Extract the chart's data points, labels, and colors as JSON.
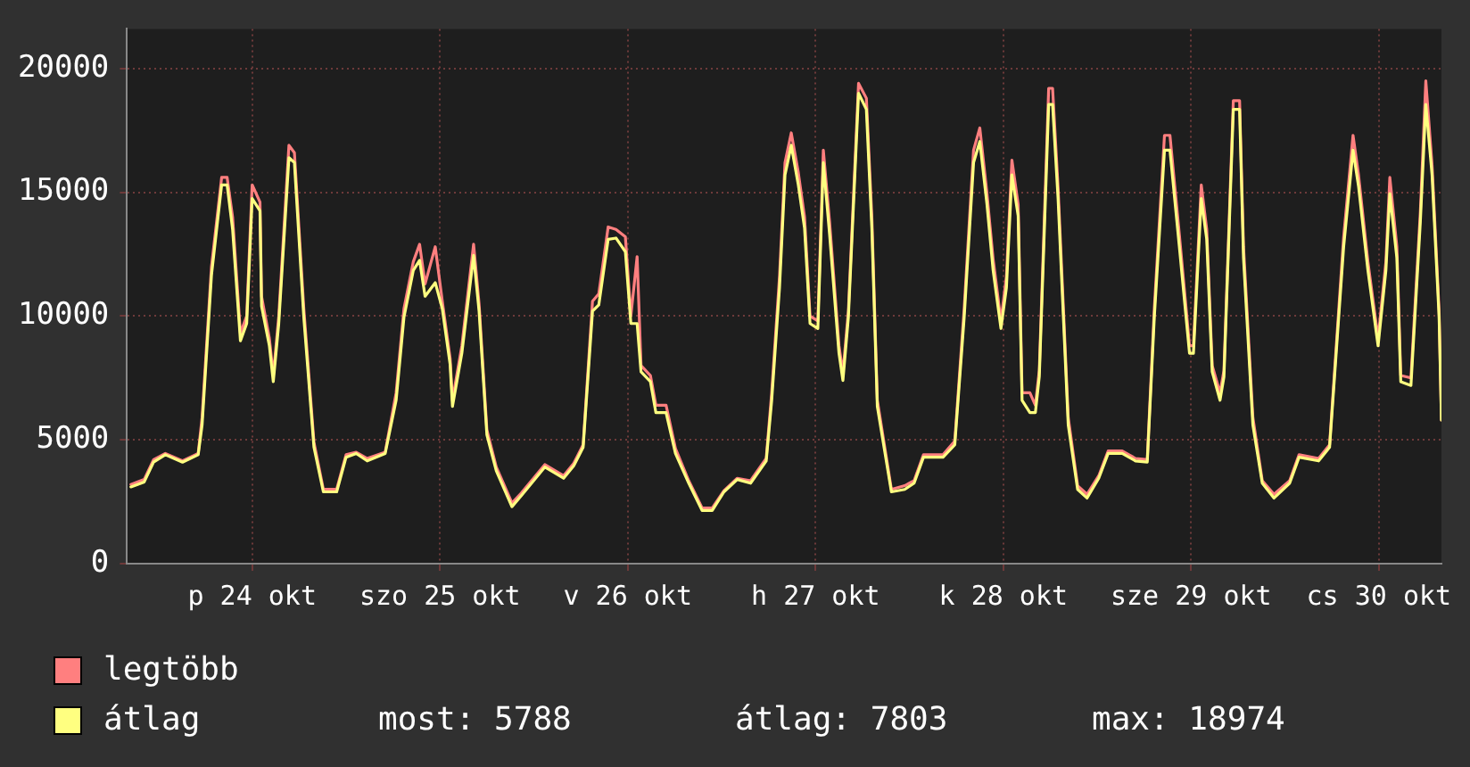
{
  "chart_data": {
    "type": "line",
    "x": [
      "--10-23T20:30",
      "--10-23T22:12",
      "--10-23T23:24",
      "--10-24T00:54",
      "--10-24T03:06",
      "--10-24T05:06",
      "--10-24T05:36",
      "--10-24T06:48",
      "--10-24T08:06",
      "--10-24T08:48",
      "--10-24T09:30",
      "--10-24T10:30",
      "--10-24T11:18",
      "--10-24T12:00",
      "--10-24T13:00",
      "--10-24T13:12",
      "--10-24T14:12",
      "--10-24T14:42",
      "--10-24T15:24",
      "--10-24T16:42",
      "--10-24T17:24",
      "--10-24T18:36",
      "--10-24T19:54",
      "--10-24T21:06",
      "--10-24T22:48",
      "--10-25T00:00",
      "--10-25T01:18",
      "--10-25T02:42",
      "--10-25T05:00",
      "--10-25T06:24",
      "--10-25T07:24",
      "--10-25T08:36",
      "--10-25T09:24",
      "--10-25T10:06",
      "--10-25T11:24",
      "--10-25T12:18",
      "--10-25T13:18",
      "--10-25T13:36",
      "--10-25T14:48",
      "--10-25T16:18",
      "--10-25T17:00",
      "--10-25T18:00",
      "--10-25T19:12",
      "--10-25T21:12",
      "--10-25T22:24",
      "--10-26T01:24",
      "--10-26T03:48",
      "--10-26T05:06",
      "--10-26T06:18",
      "--10-26T07:30",
      "--10-26T08:18",
      "--10-26T09:30",
      "--10-26T10:30",
      "--10-26T11:42",
      "--10-26T12:24",
      "--10-26T13:12",
      "--10-26T13:42",
      "--10-26T14:54",
      "--10-26T15:36",
      "--10-26T16:54",
      "--10-26T18:06",
      "--10-26T19:48",
      "--10-26T21:30",
      "--10-26T22:48",
      "--10-27T00:18",
      "--10-27T02:00",
      "--10-27T03:42",
      "--10-27T05:42",
      "--10-27T06:24",
      "--10-27T07:24",
      "--10-27T08:06",
      "--10-27T08:54",
      "--10-27T09:48",
      "--10-27T10:36",
      "--10-27T11:18",
      "--10-27T12:18",
      "--10-27T13:00",
      "--10-27T13:48",
      "--10-27T15:00",
      "--10-27T15:30",
      "--10-27T16:12",
      "--10-27T17:30",
      "--10-27T18:30",
      "--10-27T19:12",
      "--10-27T19:54",
      "--10-27T21:42",
      "--10-27T23:24",
      "--10-28T00:36",
      "--10-28T01:48",
      "--10-28T04:18",
      "--10-28T05:48",
      "--10-28T07:00",
      "--10-28T08:12",
      "--10-28T09:00",
      "--10-28T09:54",
      "--10-28T10:42",
      "--10-28T11:42",
      "--10-28T12:24",
      "--10-28T13:06",
      "--10-28T13:54",
      "--10-28T14:24",
      "--10-28T15:24",
      "--10-28T16:06",
      "--10-28T16:36",
      "--10-28T17:48",
      "--10-28T18:18",
      "--10-28T19:00",
      "--10-28T20:18",
      "--10-28T21:30",
      "--10-28T22:42",
      "--10-29T00:12",
      "--10-29T01:24",
      "--10-29T03:12",
      "--10-29T04:54",
      "--10-29T06:24",
      "--10-29T07:18",
      "--10-29T08:36",
      "--10-29T09:18",
      "--10-29T10:30",
      "--10-29T11:48",
      "--10-29T12:18",
      "--10-29T13:18",
      "--10-29T14:00",
      "--10-29T14:42",
      "--10-29T15:42",
      "--10-29T16:12",
      "--10-29T17:24",
      "--10-29T18:12",
      "--10-29T18:42",
      "--10-29T19:54",
      "--10-29T21:06",
      "--10-29T22:36",
      "--10-30T00:36",
      "--10-30T01:48",
      "--10-30T04:18",
      "--10-30T05:42",
      "--10-30T07:30",
      "--10-30T08:42",
      "--10-30T09:24",
      "--10-30T10:36",
      "--10-30T11:54",
      "--10-30T12:54",
      "--10-30T13:24",
      "--10-30T14:18",
      "--10-30T14:48",
      "--10-30T16:06",
      "--10-30T17:18",
      "--10-30T18:00",
      "--10-30T18:48",
      "--10-30T19:42",
      "--10-30T20:00"
    ],
    "series": [
      {
        "name": "legtöbb",
        "color": "#ff7f7f",
        "values": [
          3200,
          3400,
          4200,
          4450,
          4150,
          4450,
          5900,
          12000,
          15600,
          15600,
          14000,
          9300,
          10000,
          15300,
          14600,
          10800,
          9100,
          7600,
          10000,
          16900,
          16600,
          10300,
          4900,
          3000,
          3000,
          4400,
          4500,
          4250,
          4500,
          6900,
          10300,
          12200,
          12900,
          11300,
          12800,
          10600,
          8300,
          6600,
          8800,
          12900,
          10500,
          5400,
          3900,
          2450,
          2850,
          4000,
          3550,
          4050,
          4800,
          10600,
          10900,
          13600,
          13500,
          13200,
          10000,
          12400,
          8000,
          7600,
          6400,
          6400,
          4650,
          3350,
          2250,
          2250,
          2950,
          3450,
          3350,
          4250,
          6900,
          11600,
          16200,
          17400,
          15800,
          14000,
          10000,
          9800,
          16700,
          13800,
          8800,
          7700,
          10200,
          19400,
          18800,
          14000,
          6600,
          3000,
          3150,
          3350,
          4400,
          4400,
          4950,
          10300,
          16700,
          17600,
          15000,
          12300,
          9800,
          11600,
          16300,
          14500,
          6900,
          6900,
          6400,
          7800,
          19200,
          19200,
          15200,
          5900,
          3150,
          2800,
          3550,
          4550,
          4550,
          4250,
          4200,
          10300,
          17300,
          17300,
          13300,
          8800,
          8800,
          15300,
          13500,
          8000,
          6900,
          7800,
          18700,
          18700,
          12800,
          5900,
          3350,
          2800,
          3350,
          4400,
          4250,
          4800,
          13200,
          17300,
          15700,
          12200,
          9100,
          12200,
          15600,
          12800,
          7600,
          7500,
          14200,
          19500,
          16100,
          10200,
          5800
        ]
      },
      {
        "name": "átlag",
        "color": "#ffff80",
        "values": [
          3100,
          3300,
          4100,
          4400,
          4100,
          4400,
          5600,
          11650,
          15300,
          15300,
          13500,
          9000,
          9700,
          14750,
          14250,
          10400,
          8800,
          7350,
          9700,
          16400,
          16200,
          9950,
          4700,
          2900,
          2900,
          4300,
          4450,
          4150,
          4450,
          6600,
          9950,
          11850,
          12250,
          10800,
          11350,
          10300,
          8050,
          6350,
          8500,
          12450,
          10200,
          5200,
          3750,
          2300,
          2750,
          3900,
          3450,
          3950,
          4700,
          10200,
          10450,
          13100,
          13150,
          12600,
          9700,
          9700,
          7750,
          7350,
          6100,
          6100,
          4450,
          3250,
          2150,
          2150,
          2900,
          3400,
          3250,
          4150,
          6600,
          11150,
          15700,
          16900,
          15300,
          13550,
          9700,
          9500,
          16200,
          13300,
          8500,
          7400,
          9950,
          19000,
          18350,
          13550,
          6350,
          2900,
          3000,
          3250,
          4300,
          4300,
          4800,
          9950,
          16200,
          17050,
          14550,
          11850,
          9500,
          11150,
          15700,
          14050,
          6600,
          6100,
          6100,
          7550,
          18550,
          18550,
          14750,
          5600,
          3000,
          2650,
          3450,
          4450,
          4450,
          4150,
          4100,
          9950,
          16700,
          16700,
          12800,
          8500,
          8500,
          14750,
          13100,
          7750,
          6600,
          7550,
          18350,
          18350,
          12350,
          5600,
          3250,
          2650,
          3250,
          4300,
          4150,
          4700,
          12800,
          16700,
          15250,
          11850,
          8800,
          11850,
          14950,
          12350,
          7350,
          7200,
          13800,
          18550,
          15700,
          9950,
          5800
        ]
      }
    ],
    "xlim": [
      "--10-23T20:00",
      "--10-30T20:00"
    ],
    "xticks": [
      {
        "value": "--10-24T12:00",
        "label": "p 24 okt"
      },
      {
        "value": "--10-25T12:00",
        "label": "szo 25 okt"
      },
      {
        "value": "--10-26T12:00",
        "label": "v 26 okt"
      },
      {
        "value": "--10-27T12:00",
        "label": "h 27 okt"
      },
      {
        "value": "--10-28T12:00",
        "label": "k 28 okt"
      },
      {
        "value": "--10-29T12:00",
        "label": "sze 29 okt"
      },
      {
        "value": "--10-30T12:00",
        "label": "cs 30 okt"
      }
    ],
    "ylim": [
      0,
      21600
    ],
    "yticks": [
      0,
      5000,
      10000,
      15000,
      20000
    ],
    "grid": true,
    "legend": "bottom left",
    "marker": "none",
    "line_style": "solid",
    "annotations": [
      "most: 5788",
      "átlag: 7803",
      "max: 18974"
    ]
  }
}
